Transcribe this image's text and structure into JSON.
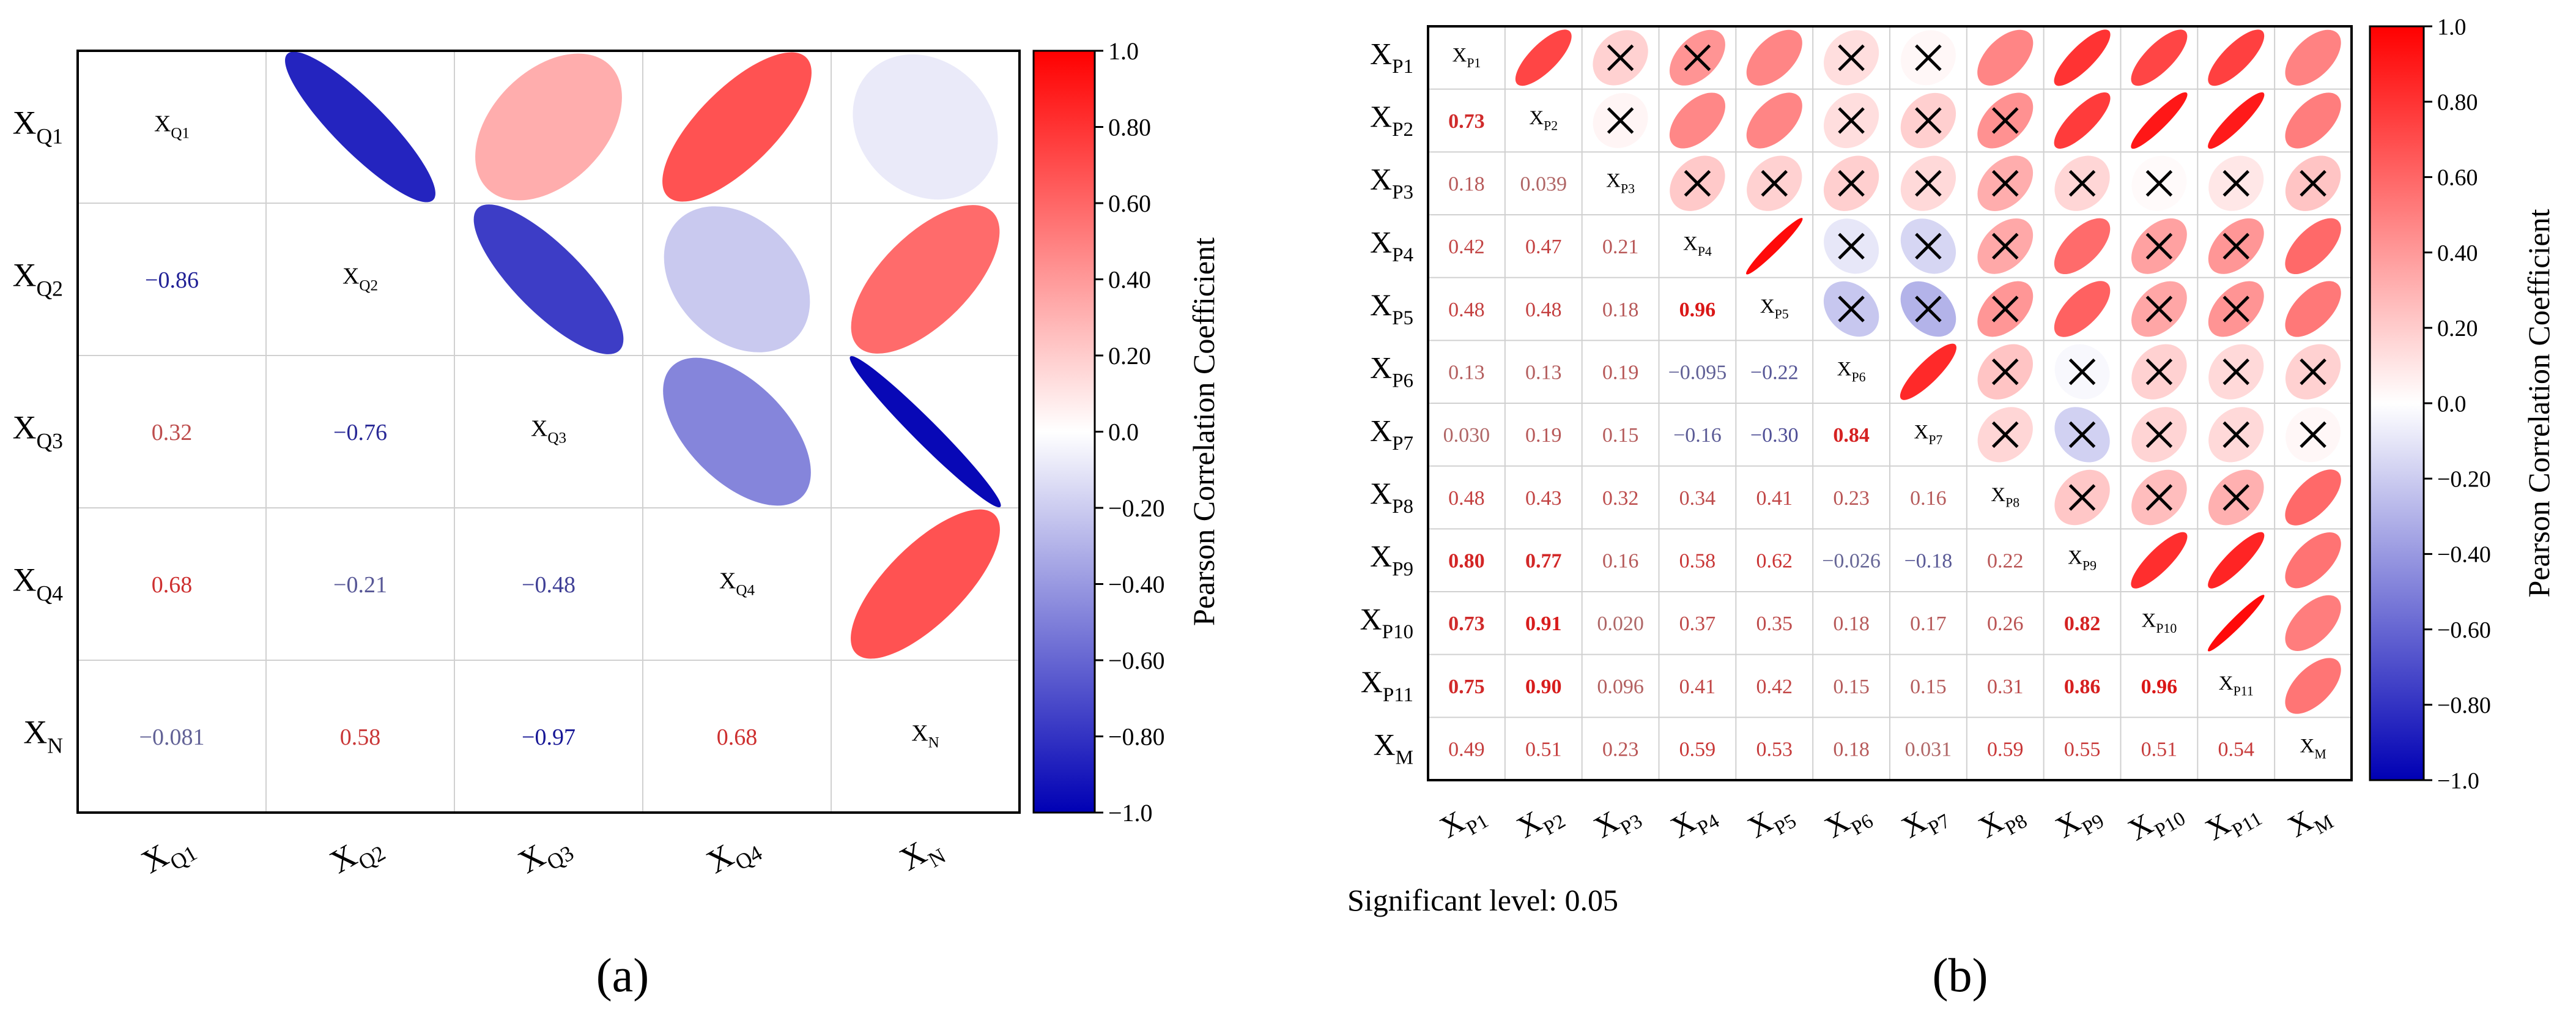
{
  "figure": {
    "panel_a_label": "(a)",
    "panel_b_label": "(b)",
    "significance_note": "Significant level: 0.05"
  },
  "colors": {
    "positive": "#ff0000",
    "neutral": "#ffffff",
    "negative": "#0000b4",
    "frame": "#000000",
    "grid": "#d0d0d0"
  },
  "chart_data": [
    {
      "type": "heatmap",
      "style": "correlation-matrix-ellipses",
      "panel": "a",
      "variables": [
        {
          "base": "X",
          "sub": "Q1"
        },
        {
          "base": "X",
          "sub": "Q2"
        },
        {
          "base": "X",
          "sub": "Q3"
        },
        {
          "base": "X",
          "sub": "Q4"
        },
        {
          "base": "X",
          "sub": "N"
        }
      ],
      "lower_labels": [
        [
          null,
          null,
          null,
          null,
          null
        ],
        [
          "−0.86",
          null,
          null,
          null,
          null
        ],
        [
          "0.32",
          "−0.76",
          null,
          null,
          null
        ],
        [
          "0.68",
          "−0.21",
          "−0.48",
          null,
          null
        ],
        [
          "−0.081",
          "0.58",
          "−0.97",
          "0.68",
          null
        ]
      ],
      "matrix": [
        [
          1.0,
          -0.86,
          0.32,
          0.68,
          -0.081
        ],
        [
          -0.86,
          1.0,
          -0.76,
          -0.21,
          0.58
        ],
        [
          0.32,
          -0.76,
          1.0,
          -0.48,
          -0.97
        ],
        [
          0.68,
          -0.21,
          -0.48,
          1.0,
          0.68
        ],
        [
          -0.081,
          0.58,
          -0.97,
          0.68,
          1.0
        ]
      ],
      "significant": null,
      "colorbar": {
        "label": "Pearson Correlation Coefficient",
        "range": [
          -1.0,
          1.0
        ],
        "ticks": [
          "1.0",
          "0.80",
          "0.60",
          "0.40",
          "0.20",
          "0.0",
          "−0.20",
          "−0.40",
          "−0.60",
          "−0.80",
          "−1.0"
        ]
      }
    },
    {
      "type": "heatmap",
      "style": "correlation-matrix-ellipses",
      "panel": "b",
      "variables": [
        {
          "base": "X",
          "sub": "P1"
        },
        {
          "base": "X",
          "sub": "P2"
        },
        {
          "base": "X",
          "sub": "P3"
        },
        {
          "base": "X",
          "sub": "P4"
        },
        {
          "base": "X",
          "sub": "P5"
        },
        {
          "base": "X",
          "sub": "P6"
        },
        {
          "base": "X",
          "sub": "P7"
        },
        {
          "base": "X",
          "sub": "P8"
        },
        {
          "base": "X",
          "sub": "P9"
        },
        {
          "base": "X",
          "sub": "P10"
        },
        {
          "base": "X",
          "sub": "P11"
        },
        {
          "base": "X",
          "sub": "M"
        }
      ],
      "lower_labels": [
        [
          null,
          null,
          null,
          null,
          null,
          null,
          null,
          null,
          null,
          null,
          null,
          null
        ],
        [
          "0.73",
          null,
          null,
          null,
          null,
          null,
          null,
          null,
          null,
          null,
          null,
          null
        ],
        [
          "0.18",
          "0.039",
          null,
          null,
          null,
          null,
          null,
          null,
          null,
          null,
          null,
          null
        ],
        [
          "0.42",
          "0.47",
          "0.21",
          null,
          null,
          null,
          null,
          null,
          null,
          null,
          null,
          null
        ],
        [
          "0.48",
          "0.48",
          "0.18",
          "0.96",
          null,
          null,
          null,
          null,
          null,
          null,
          null,
          null
        ],
        [
          "0.13",
          "0.13",
          "0.19",
          "−0.095",
          "−0.22",
          null,
          null,
          null,
          null,
          null,
          null,
          null
        ],
        [
          "0.030",
          "0.19",
          "0.15",
          "−0.16",
          "−0.30",
          "0.84",
          null,
          null,
          null,
          null,
          null,
          null
        ],
        [
          "0.48",
          "0.43",
          "0.32",
          "0.34",
          "0.41",
          "0.23",
          "0.16",
          null,
          null,
          null,
          null,
          null
        ],
        [
          "0.80",
          "0.77",
          "0.16",
          "0.58",
          "0.62",
          "−0.026",
          "−0.18",
          "0.22",
          null,
          null,
          null,
          null
        ],
        [
          "0.73",
          "0.91",
          "0.020",
          "0.37",
          "0.35",
          "0.18",
          "0.17",
          "0.26",
          "0.82",
          null,
          null,
          null
        ],
        [
          "0.75",
          "0.90",
          "0.096",
          "0.41",
          "0.42",
          "0.15",
          "0.15",
          "0.31",
          "0.86",
          "0.96",
          null,
          null
        ],
        [
          "0.49",
          "0.51",
          "0.23",
          "0.59",
          "0.53",
          "0.18",
          "0.031",
          "0.59",
          "0.55",
          "0.51",
          "0.54",
          null
        ]
      ],
      "matrix": [
        [
          1.0,
          0.73,
          0.18,
          0.42,
          0.48,
          0.13,
          0.03,
          0.48,
          0.8,
          0.73,
          0.75,
          0.49
        ],
        [
          0.73,
          1.0,
          0.039,
          0.47,
          0.48,
          0.13,
          0.19,
          0.43,
          0.77,
          0.91,
          0.9,
          0.51
        ],
        [
          0.18,
          0.039,
          1.0,
          0.21,
          0.18,
          0.19,
          0.15,
          0.32,
          0.16,
          0.02,
          0.096,
          0.23
        ],
        [
          0.42,
          0.47,
          0.21,
          1.0,
          0.96,
          -0.095,
          -0.16,
          0.34,
          0.58,
          0.37,
          0.41,
          0.59
        ],
        [
          0.48,
          0.48,
          0.18,
          0.96,
          1.0,
          -0.22,
          -0.3,
          0.41,
          0.62,
          0.35,
          0.42,
          0.53
        ],
        [
          0.13,
          0.13,
          0.19,
          -0.095,
          -0.22,
          1.0,
          0.84,
          0.23,
          -0.026,
          0.18,
          0.15,
          0.18
        ],
        [
          0.03,
          0.19,
          0.15,
          -0.16,
          -0.3,
          0.84,
          1.0,
          0.16,
          -0.18,
          0.17,
          0.15,
          0.031
        ],
        [
          0.48,
          0.43,
          0.32,
          0.34,
          0.41,
          0.23,
          0.16,
          1.0,
          0.22,
          0.26,
          0.31,
          0.59
        ],
        [
          0.8,
          0.77,
          0.16,
          0.58,
          0.62,
          -0.026,
          -0.18,
          0.22,
          1.0,
          0.82,
          0.86,
          0.55
        ],
        [
          0.73,
          0.91,
          0.02,
          0.37,
          0.35,
          0.18,
          0.17,
          0.26,
          0.82,
          1.0,
          0.96,
          0.51
        ],
        [
          0.75,
          0.9,
          0.096,
          0.41,
          0.42,
          0.15,
          0.15,
          0.31,
          0.86,
          0.96,
          1.0,
          0.54
        ],
        [
          0.49,
          0.51,
          0.23,
          0.59,
          0.53,
          0.18,
          0.031,
          0.59,
          0.55,
          0.51,
          0.54,
          1.0
        ]
      ],
      "significant": [
        [
          true,
          true,
          false,
          false,
          true,
          false,
          false,
          true,
          true,
          true,
          true,
          true
        ],
        [
          true,
          true,
          false,
          true,
          true,
          false,
          false,
          false,
          true,
          true,
          true,
          true
        ],
        [
          false,
          false,
          true,
          false,
          false,
          false,
          false,
          false,
          false,
          false,
          false,
          false
        ],
        [
          false,
          true,
          false,
          true,
          true,
          false,
          false,
          false,
          true,
          false,
          false,
          true
        ],
        [
          true,
          true,
          false,
          true,
          true,
          false,
          false,
          false,
          true,
          false,
          false,
          true
        ],
        [
          false,
          false,
          false,
          false,
          false,
          true,
          true,
          false,
          false,
          false,
          false,
          false
        ],
        [
          false,
          false,
          false,
          false,
          false,
          true,
          true,
          false,
          false,
          false,
          false,
          false
        ],
        [
          true,
          false,
          false,
          false,
          false,
          false,
          false,
          true,
          false,
          false,
          false,
          true
        ],
        [
          true,
          true,
          false,
          true,
          true,
          false,
          false,
          false,
          true,
          true,
          true,
          true
        ],
        [
          true,
          true,
          false,
          false,
          false,
          false,
          false,
          false,
          true,
          true,
          true,
          true
        ],
        [
          true,
          true,
          false,
          false,
          false,
          false,
          false,
          false,
          true,
          true,
          true,
          true
        ],
        [
          true,
          true,
          false,
          true,
          true,
          false,
          false,
          true,
          true,
          true,
          true,
          true
        ]
      ],
      "colorbar": {
        "label": "Pearson Correlation Coefficient",
        "range": [
          -1.0,
          1.0
        ],
        "ticks": [
          "1.0",
          "0.80",
          "0.60",
          "0.40",
          "0.20",
          "0.0",
          "−0.20",
          "−0.40",
          "−0.60",
          "−0.80",
          "−1.0"
        ]
      }
    }
  ]
}
